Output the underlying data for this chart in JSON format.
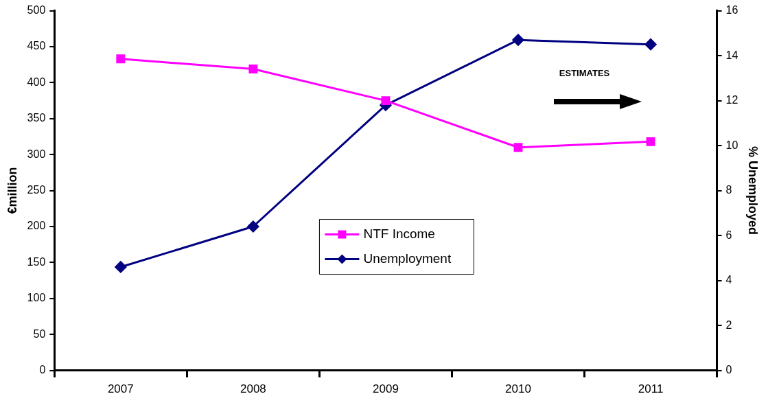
{
  "chart_data": {
    "type": "line",
    "categories": [
      "2007",
      "2008",
      "2009",
      "2010",
      "2011"
    ],
    "ylabel": "€million",
    "y2label": "% Unemployed",
    "ylim": [
      0,
      500
    ],
    "yticks": [
      0,
      50,
      100,
      150,
      200,
      250,
      300,
      350,
      400,
      450,
      500
    ],
    "y2lim": [
      0,
      16
    ],
    "y2ticks": [
      0,
      2,
      4,
      6,
      8,
      10,
      12,
      14,
      16
    ],
    "grid": false,
    "legend": "center",
    "annotations": [
      "ESTIMATES"
    ],
    "series": [
      {
        "name": "NTF Income",
        "color": "#ff00ff",
        "marker": "square",
        "values": [
          433,
          419,
          375,
          310,
          318
        ]
      },
      {
        "name": "Unemployment",
        "color": "#000080",
        "marker": "diamond",
        "axis": "y2",
        "values": [
          4.6,
          6.4,
          11.8,
          14.7,
          14.5
        ]
      }
    ]
  }
}
